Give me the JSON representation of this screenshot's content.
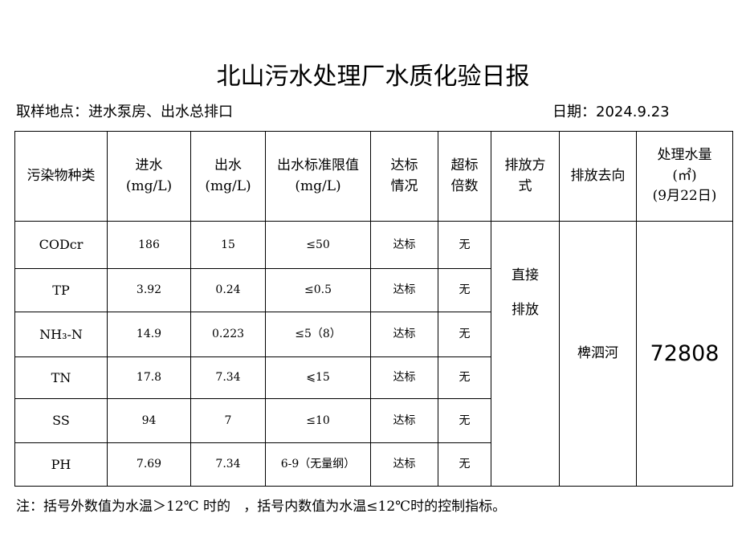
{
  "header": {
    "title": "北山污水处理厂水质化验日报",
    "location": "取样地点：进水泵房、出水总排口",
    "date": "日期：2024.9.23"
  },
  "table": {
    "columns": [
      "污染物种类",
      "进水\n(mg/L)",
      "出水\n(mg/L)",
      "出水标准限值\n(mg/L)",
      "达标\n情况",
      "超标\n倍数",
      "排放方\n式",
      "排放去向",
      "处理水量\n(㎡)\n(9月22日)"
    ],
    "rows": [
      [
        "CODcr",
        "186",
        "15",
        "≤50",
        "达标",
        "无"
      ],
      [
        "TP",
        "3.92",
        "0.24",
        "≤0.5",
        "达标",
        "无"
      ],
      [
        "NH₃-N",
        "14.9",
        "0.223",
        "≤5（8）",
        "达标",
        "无"
      ],
      [
        "TN",
        "17.8",
        "7.34",
        "⩽15",
        "达标",
        "无"
      ],
      [
        "SS",
        "94",
        "7",
        "≤10",
        "达标",
        "无"
      ],
      [
        "PH",
        "7.69",
        "7.34",
        "6-9（无量纲）",
        "达标",
        "无"
      ]
    ],
    "discharge_method": "直接\n排放",
    "discharge_destination": "椑泗河",
    "treated_volume": "72808"
  },
  "note": "注：括号外数值为水温＞12℃ 时的   ，括号内数值为水温≤12℃时的控制指标。"
}
